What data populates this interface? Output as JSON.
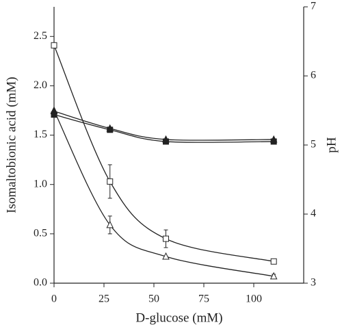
{
  "chart_data": {
    "type": "line",
    "x_label": "D-glucose (mM)",
    "y_label": "Isomaltobionic acid (mM)",
    "y2_label": "pH",
    "x": [
      0,
      28,
      56,
      110
    ],
    "xlim": [
      0,
      125
    ],
    "xticks": [
      0,
      25,
      50,
      75,
      100
    ],
    "ylim": [
      0,
      2.8
    ],
    "yticks": [
      {
        "value": 0,
        "label": "0.0"
      },
      0.5,
      {
        "value": 1,
        "label": "1.0"
      },
      1.5,
      {
        "value": 2,
        "label": "2.0"
      },
      2.5
    ],
    "y2lim": [
      3,
      7
    ],
    "y2ticks": [
      3,
      4,
      5,
      6,
      7
    ],
    "series": [
      {
        "color": "#222222",
        "marker": "square-open",
        "values": [
          2.41,
          1.03,
          0.45,
          0.22
        ],
        "errors": [
          0,
          0.17,
          0.09,
          0
        ]
      },
      {
        "color": "#222222",
        "marker": "triangle-open",
        "values": [
          1.75,
          0.59,
          0.27,
          0.07
        ],
        "errors": [
          0,
          0.09,
          0,
          0.02
        ]
      },
      {
        "color": "#222222",
        "marker": "square-filled",
        "axis": "y2",
        "values": [
          5.44,
          5.22,
          5.05,
          5.05
        ]
      },
      {
        "color": "#222222",
        "marker": "triangle-filled",
        "axis": "y2",
        "values": [
          5.49,
          5.24,
          5.08,
          5.08
        ]
      }
    ]
  }
}
